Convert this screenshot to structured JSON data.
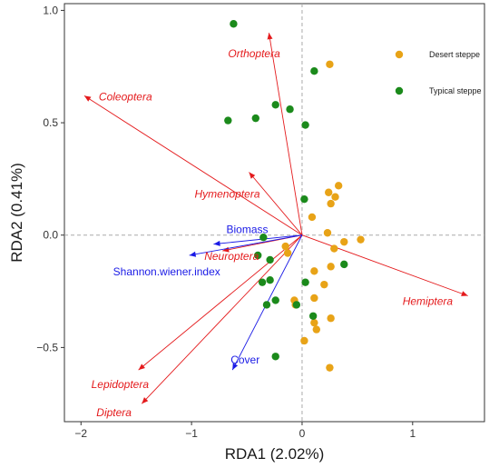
{
  "chart_data": {
    "type": "scatter",
    "title": "",
    "xlabel": "RDA1 (2.02%)",
    "ylabel": "RDA2 (0.41%)",
    "xlim": [
      -2.15,
      1.65
    ],
    "ylim": [
      -0.83,
      1.03
    ],
    "xticks": [
      -2,
      -1,
      0,
      1
    ],
    "yticks": [
      -0.5,
      0.0,
      0.5,
      1.0
    ],
    "xtick_labels": [
      "−2",
      "−1",
      "0",
      "1"
    ],
    "ytick_labels": [
      "−0.5",
      "0.0",
      "0.5",
      "1.0"
    ],
    "grid": false,
    "reference_lines": {
      "x": 0,
      "y": 0,
      "style": "dashed"
    },
    "legend": {
      "position": "top-right",
      "entries": [
        {
          "name": "Desert steppe",
          "color": "#e8a317"
        },
        {
          "name": "Typical steppe",
          "color": "#1b8a1b"
        }
      ]
    },
    "series": [
      {
        "name": "Desert steppe",
        "color": "#e8a317",
        "points": [
          [
            0.25,
            0.76
          ],
          [
            0.24,
            0.19
          ],
          [
            0.33,
            0.22
          ],
          [
            0.3,
            0.17
          ],
          [
            0.26,
            0.14
          ],
          [
            0.09,
            0.08
          ],
          [
            0.38,
            -0.03
          ],
          [
            0.53,
            -0.02
          ],
          [
            0.23,
            0.01
          ],
          [
            0.29,
            -0.06
          ],
          [
            -0.15,
            -0.05
          ],
          [
            -0.13,
            -0.08
          ],
          [
            0.26,
            -0.14
          ],
          [
            0.11,
            -0.16
          ],
          [
            0.2,
            -0.22
          ],
          [
            0.11,
            -0.28
          ],
          [
            -0.07,
            -0.29
          ],
          [
            -0.06,
            -0.31
          ],
          [
            0.26,
            -0.37
          ],
          [
            0.11,
            -0.39
          ],
          [
            0.13,
            -0.42
          ],
          [
            0.02,
            -0.47
          ],
          [
            0.25,
            -0.59
          ]
        ]
      },
      {
        "name": "Typical steppe",
        "color": "#1b8a1b",
        "points": [
          [
            -0.62,
            0.94
          ],
          [
            0.11,
            0.73
          ],
          [
            -0.24,
            0.58
          ],
          [
            -0.11,
            0.56
          ],
          [
            -0.42,
            0.52
          ],
          [
            -0.67,
            0.51
          ],
          [
            0.03,
            0.49
          ],
          [
            0.02,
            0.16
          ],
          [
            -0.35,
            -0.01
          ],
          [
            -0.4,
            -0.09
          ],
          [
            -0.29,
            -0.11
          ],
          [
            0.38,
            -0.13
          ],
          [
            -0.29,
            -0.2
          ],
          [
            -0.36,
            -0.21
          ],
          [
            0.03,
            -0.21
          ],
          [
            -0.24,
            -0.29
          ],
          [
            -0.32,
            -0.31
          ],
          [
            -0.05,
            -0.31
          ],
          [
            0.1,
            -0.36
          ],
          [
            -0.24,
            -0.54
          ]
        ]
      }
    ],
    "species_arrows": {
      "color": "#e41a1c",
      "items": [
        {
          "name": "Orthoptera",
          "x": -0.3,
          "y": 0.9
        },
        {
          "name": "Coleoptera",
          "x": -1.97,
          "y": 0.62
        },
        {
          "name": "Hymenoptera",
          "x": -0.48,
          "y": 0.28
        },
        {
          "name": "Neuroptera",
          "x": -0.72,
          "y": -0.07
        },
        {
          "name": "Hemiptera",
          "x": 1.5,
          "y": -0.27
        },
        {
          "name": "Lepidoptera",
          "x": -1.48,
          "y": -0.6
        },
        {
          "name": "Diptera",
          "x": -1.45,
          "y": -0.75
        }
      ]
    },
    "env_arrows": {
      "color": "#1a1ae6",
      "items": [
        {
          "name": "Biomass",
          "x": -0.8,
          "y": -0.04
        },
        {
          "name": "Shannon.wiener.index",
          "x": -1.02,
          "y": -0.09
        },
        {
          "name": "Cover",
          "x": -0.63,
          "y": -0.6
        }
      ]
    }
  }
}
